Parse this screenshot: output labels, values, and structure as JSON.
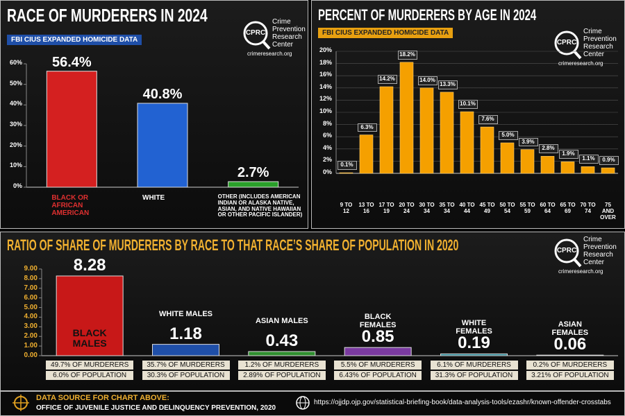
{
  "chart_data": [
    {
      "type": "bar",
      "title": "RACE OF MURDERERS IN 2024",
      "subtitle": "FBI CIUS EXPANDED HOMICIDE DATA",
      "categories": [
        "BLACK OR AFRICAN AMERICAN",
        "WHITE",
        "OTHER (INCLUDES AMERICAN INDIAN OR ALASKA NATIVE, ASIAN, AND NATIVE HAWAIIAN OR OTHER PACIFIC ISLANDER)"
      ],
      "values": [
        56.4,
        40.8,
        2.7
      ],
      "value_labels": [
        "56.4%",
        "40.8%",
        "2.7%"
      ],
      "colors": [
        "#d42020",
        "#2262d2",
        "#2aa02a"
      ],
      "ylim": [
        0,
        60
      ],
      "yticks": [
        {
          "value": 0,
          "label": "0%"
        },
        {
          "value": 10,
          "label": "10%"
        },
        {
          "value": 20,
          "label": "20%"
        },
        {
          "value": 30,
          "label": "30%"
        },
        {
          "value": 40,
          "label": "40%"
        },
        {
          "value": 50,
          "label": "50%"
        },
        {
          "value": 60,
          "label": "60%"
        }
      ],
      "grid": false
    },
    {
      "type": "bar",
      "title": "PERCENT OF MURDERERS BY AGE IN 2024",
      "subtitle": "FBI CIUS EXPANDED HOMICIDE DATA",
      "categories": [
        "9 TO 12",
        "13 TO 16",
        "17 TO 19",
        "20 TO 24",
        "30 TO 34",
        "35 TO 34",
        "40 TO 44",
        "45 TO 49",
        "50 TO 54",
        "55 TO 59",
        "60 TO 64",
        "65 TO 69",
        "70 TO 74",
        "75 AND OVER"
      ],
      "values": [
        0.1,
        6.3,
        14.2,
        18.2,
        14.0,
        13.3,
        10.1,
        7.6,
        5.0,
        3.9,
        2.8,
        1.9,
        1.1,
        0.9
      ],
      "value_labels": [
        "0.1%",
        "6.3%",
        "14.2%",
        "18.2%",
        "14.0%",
        "13.3%",
        "10.1%",
        "7.6%",
        "5.0%",
        "3.9%",
        "2.8%",
        "1.9%",
        "1.1%",
        "0.9%"
      ],
      "color": "#f5a000",
      "ylim": [
        0,
        20
      ],
      "yticks": [
        {
          "value": 0,
          "label": "0%"
        },
        {
          "value": 2,
          "label": "2%"
        },
        {
          "value": 4,
          "label": "4%"
        },
        {
          "value": 6,
          "label": "6%"
        },
        {
          "value": 8,
          "label": "8%"
        },
        {
          "value": 10,
          "label": "10%"
        },
        {
          "value": 12,
          "label": "12%"
        },
        {
          "value": 14,
          "label": "14%"
        },
        {
          "value": 16,
          "label": "16%"
        },
        {
          "value": 18,
          "label": "18%"
        },
        {
          "value": 20,
          "label": "20%"
        }
      ],
      "grid": true
    },
    {
      "type": "bar",
      "title": "RATIO OF SHARE OF MURDERERS BY RACE TO THAT RACE’S SHARE OF POPULATION IN 2020",
      "categories": [
        "BLACK MALES",
        "WHITE MALES",
        "ASIAN MALES",
        "BLACK FEMALES",
        "WHITE FEMALES",
        "ASIAN FEMALES"
      ],
      "values": [
        8.28,
        1.18,
        0.43,
        0.85,
        0.19,
        0.06
      ],
      "colors": [
        "#c81818",
        "#1f4fa8",
        "#2f8f2f",
        "#7a3aa0",
        "#1a7f8f",
        "#b05a1a"
      ],
      "notes": [
        [
          "49.7% OF MURDERERS",
          "6.0% OF POPULATION"
        ],
        [
          "35.7% OF MURDERERS",
          "30.3% OF POPULATION"
        ],
        [
          "1.2% OF MURDERERS",
          "2.89% OF POPULATION"
        ],
        [
          "5.5% OF MURDERERS",
          "6.43% OF POPULATION"
        ],
        [
          "6.1% OF MURDERERS",
          "31.3% OF POPULATION"
        ],
        [
          "0.2% OF MURDERERS",
          "3.21% OF POPULATION"
        ]
      ],
      "ylim": [
        0,
        9
      ],
      "yticks": [
        {
          "value": 0,
          "label": "0.00"
        },
        {
          "value": 1,
          "label": "1.00"
        },
        {
          "value": 2,
          "label": "2.00"
        },
        {
          "value": 3,
          "label": "3.00"
        },
        {
          "value": 4,
          "label": "4.00"
        },
        {
          "value": 5,
          "label": "5.00"
        },
        {
          "value": 6,
          "label": "6.00"
        },
        {
          "value": 7,
          "label": "7.00"
        },
        {
          "value": 8,
          "label": "8.00"
        },
        {
          "value": 9,
          "label": "9.00"
        }
      ],
      "grid": false
    }
  ],
  "logo": {
    "mark": "CPRC",
    "name": [
      "Crime",
      "Prevention",
      "Research",
      "Center"
    ],
    "url": "crimeresearch.org"
  },
  "footer": {
    "source_heading": "DATA SOURCE FOR CHART ABOVE:",
    "source": "OFFICE OF JUVENILE JUSTICE AND DELINQUENCY PREVENTION, 2020",
    "link": "https://ojjdp.ojp.gov/statistical-briefing-book/data-analysis-tools/ezashr/known-offender-crosstabs"
  }
}
